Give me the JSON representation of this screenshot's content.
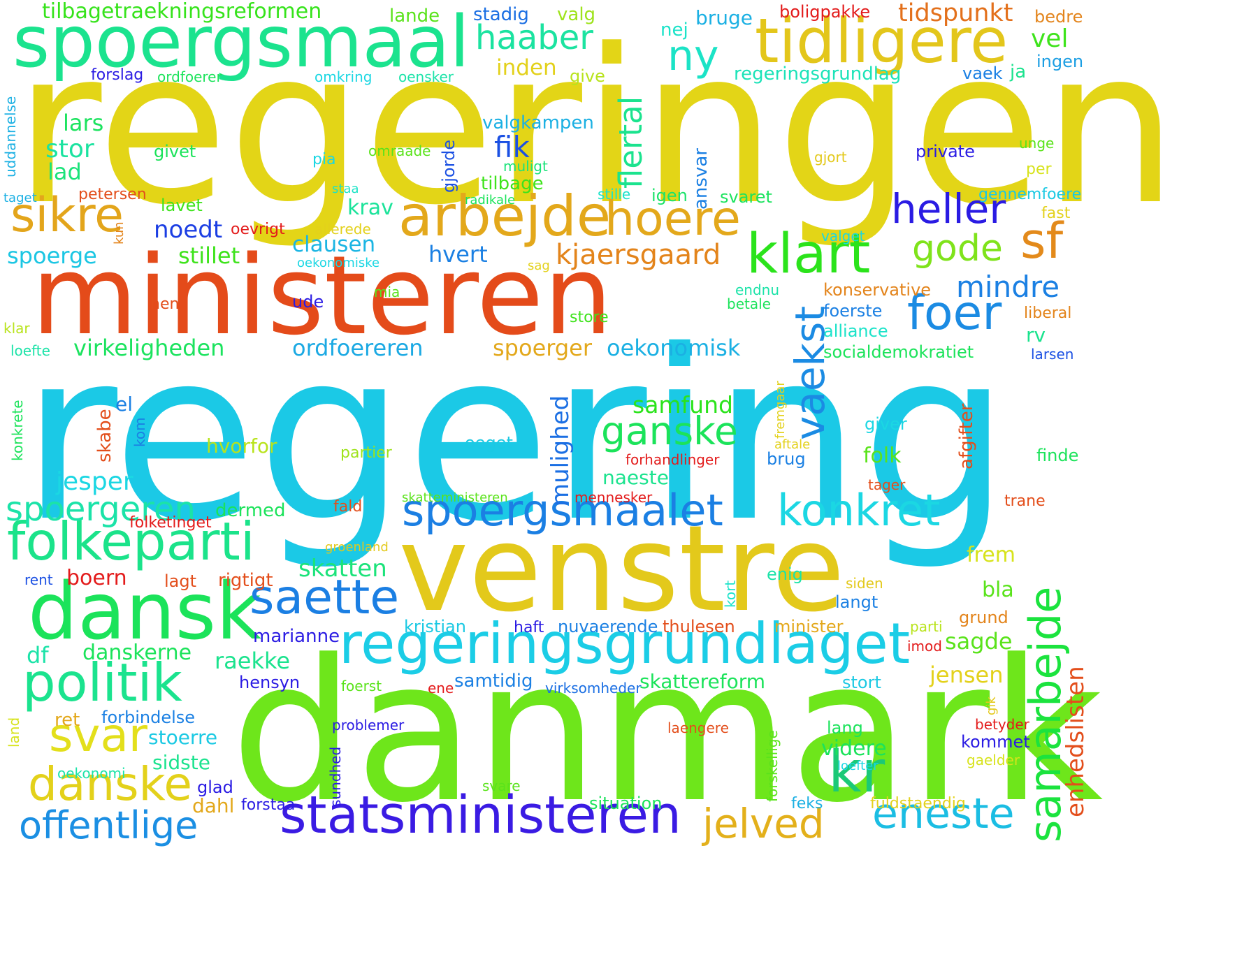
{
  "cloud": {
    "words": [
      {
        "text": "regeringen",
        "color": "#e3d517",
        "rotated": false
      },
      {
        "text": "regering",
        "color": "#1bc9e6",
        "rotated": false
      },
      {
        "text": "ministeren",
        "color": "#e44b1a",
        "rotated": false
      },
      {
        "text": "danmark",
        "color": "#6ee61b",
        "rotated": false
      },
      {
        "text": "venstre",
        "color": "#e3c91b",
        "rotated": false
      },
      {
        "text": "spoergsmaal",
        "color": "#1be38e",
        "rotated": false
      },
      {
        "text": "dansk",
        "color": "#1be35a",
        "rotated": false
      },
      {
        "text": "tidligere",
        "color": "#e3c61b",
        "rotated": false
      },
      {
        "text": "regeringsgrundlaget",
        "color": "#1bcde6",
        "rotated": false
      },
      {
        "text": "statsministeren",
        "color": "#3a1be3",
        "rotated": false
      },
      {
        "text": "arbejde",
        "color": "#e3a81b",
        "rotated": false
      },
      {
        "text": "folkeparti",
        "color": "#1be38a",
        "rotated": false
      },
      {
        "text": "spoergsmaalet",
        "color": "#1b7fe3",
        "rotated": false
      },
      {
        "text": "politik",
        "color": "#1be38e",
        "rotated": false
      },
      {
        "text": "klart",
        "color": "#2be31b",
        "rotated": false
      },
      {
        "text": "hoere",
        "color": "#e3a81b",
        "rotated": false
      },
      {
        "text": "konkret",
        "color": "#1bd7e3",
        "rotated": false
      },
      {
        "text": "saette",
        "color": "#1b7fe3",
        "rotated": false
      },
      {
        "text": "danske",
        "color": "#e3d11b",
        "rotated": false
      },
      {
        "text": "offentlige",
        "color": "#1b8fe3",
        "rotated": false
      },
      {
        "text": "eneste",
        "color": "#1bbde3",
        "rotated": false
      },
      {
        "text": "sikre",
        "color": "#e3a51b",
        "rotated": false
      },
      {
        "text": "ganske",
        "color": "#1be35a",
        "rotated": false
      },
      {
        "text": "samarbejde",
        "color": "#1be33e",
        "rotated": true
      },
      {
        "text": "vaekst",
        "color": "#1b8be3",
        "rotated": true
      },
      {
        "text": "foer",
        "color": "#1b8be3",
        "rotated": false
      },
      {
        "text": "heller",
        "color": "#2a1be3",
        "rotated": false
      },
      {
        "text": "jelved",
        "color": "#e3b01b",
        "rotated": false
      },
      {
        "text": "svar",
        "color": "#e3df1b",
        "rotated": false
      },
      {
        "text": "kr",
        "color": "#1bc977",
        "rotated": false
      },
      {
        "text": "sf",
        "color": "#e38a1b",
        "rotated": false
      },
      {
        "text": "ny",
        "color": "#1be3c6",
        "rotated": false
      },
      {
        "text": "haaber",
        "color": "#1be3a0",
        "rotated": false
      },
      {
        "text": "gode",
        "color": "#7fe31b",
        "rotated": false
      },
      {
        "text": "flertal",
        "color": "#1be38e",
        "rotated": true
      },
      {
        "text": "mindre",
        "color": "#1b80e3",
        "rotated": false
      },
      {
        "text": "mulighed",
        "color": "#1b6fe3",
        "rotated": true
      },
      {
        "text": "enhedslisten",
        "color": "#e34e1b",
        "rotated": true
      },
      {
        "text": "spoergeren",
        "color": "#1be3a8",
        "rotated": false
      },
      {
        "text": "kjaersgaard",
        "color": "#e3841b",
        "rotated": false
      },
      {
        "text": "tilbagetraekningsreformen",
        "color": "#36e31b",
        "rotated": false
      },
      {
        "text": "tidspunkt",
        "color": "#e3701b",
        "rotated": false
      },
      {
        "text": "virkeligheden",
        "color": "#1be35e",
        "rotated": false
      },
      {
        "text": "ordfoereren",
        "color": "#1ba9e3",
        "rotated": false
      },
      {
        "text": "oekonomisk",
        "color": "#1bb0e3",
        "rotated": false
      },
      {
        "text": "jesper",
        "color": "#1bd7e3",
        "rotated": false
      },
      {
        "text": "skatten",
        "color": "#1be37a",
        "rotated": false
      },
      {
        "text": "samfund",
        "color": "#2be31b",
        "rotated": false
      },
      {
        "text": "noedt",
        "color": "#1b3ee3",
        "rotated": false
      },
      {
        "text": "clausen",
        "color": "#1bb5e3",
        "rotated": false
      },
      {
        "text": "spoerge",
        "color": "#1bc6e3",
        "rotated": false
      },
      {
        "text": "stillet",
        "color": "#3ee31b",
        "rotated": false
      },
      {
        "text": "krav",
        "color": "#1be39a",
        "rotated": false
      },
      {
        "text": "hvert",
        "color": "#1b80e3",
        "rotated": false
      },
      {
        "text": "spoerger",
        "color": "#e3a81b",
        "rotated": false
      },
      {
        "text": "stor",
        "color": "#1be3a0",
        "rotated": false
      },
      {
        "text": "lad",
        "color": "#1be37a",
        "rotated": false
      },
      {
        "text": "lars",
        "color": "#1be35e",
        "rotated": false
      },
      {
        "text": "fik",
        "color": "#1b50e3",
        "rotated": false
      },
      {
        "text": "inden",
        "color": "#e3d11b",
        "rotated": false
      },
      {
        "text": "vel",
        "color": "#3ee31b",
        "rotated": false
      },
      {
        "text": "nej",
        "color": "#1be3c9",
        "rotated": false
      },
      {
        "text": "bruge",
        "color": "#1bb0e3",
        "rotated": false
      },
      {
        "text": "lande",
        "color": "#5ae31b",
        "rotated": false
      },
      {
        "text": "stadig",
        "color": "#1b6fe3",
        "rotated": false
      },
      {
        "text": "valg",
        "color": "#9ee31b",
        "rotated": false
      },
      {
        "text": "boligpakke",
        "color": "#e31b1b",
        "rotated": false
      },
      {
        "text": "bedre",
        "color": "#e3841b",
        "rotated": false
      },
      {
        "text": "ingen",
        "color": "#1b9ee3",
        "rotated": false
      },
      {
        "text": "ja",
        "color": "#1be38e",
        "rotated": false
      },
      {
        "text": "vaek",
        "color": "#1b80e3",
        "rotated": false
      },
      {
        "text": "regeringsgrundlag",
        "color": "#1be3b8",
        "rotated": false
      },
      {
        "text": "forslag",
        "color": "#2a1be3",
        "rotated": false
      },
      {
        "text": "ordfoerer",
        "color": "#1be35a",
        "rotated": false
      },
      {
        "text": "omkring",
        "color": "#1bd7e3",
        "rotated": false
      },
      {
        "text": "oensker",
        "color": "#1be3a8",
        "rotated": false
      },
      {
        "text": "give",
        "color": "#b8e31b",
        "rotated": false
      },
      {
        "text": "valgkampen",
        "color": "#1bb0e3",
        "rotated": false
      },
      {
        "text": "givet",
        "color": "#1be35a",
        "rotated": false
      },
      {
        "text": "omraade",
        "color": "#5ae31b",
        "rotated": false
      },
      {
        "text": "muligt",
        "color": "#1be37a",
        "rotated": false
      },
      {
        "text": "tilbage",
        "color": "#3ee31b",
        "rotated": false
      },
      {
        "text": "gjorde",
        "color": "#1b50e3",
        "rotated": true
      },
      {
        "text": "pia",
        "color": "#1bd7e3",
        "rotated": false
      },
      {
        "text": "staa",
        "color": "#1be3c6",
        "rotated": false
      },
      {
        "text": "radikale",
        "color": "#1be35a",
        "rotated": false
      },
      {
        "text": "ansvar",
        "color": "#1b80e3",
        "rotated": true
      },
      {
        "text": "igen",
        "color": "#1be36a",
        "rotated": false
      },
      {
        "text": "svaret",
        "color": "#1be35e",
        "rotated": false
      },
      {
        "text": "stille",
        "color": "#1be3c9",
        "rotated": false
      },
      {
        "text": "private",
        "color": "#2a1be3",
        "rotated": false
      },
      {
        "text": "unge",
        "color": "#5ae31b",
        "rotated": false
      },
      {
        "text": "gjort",
        "color": "#e3c91b",
        "rotated": false
      },
      {
        "text": "per",
        "color": "#d7e31b",
        "rotated": false
      },
      {
        "text": "gennemfoere",
        "color": "#1bc9e3",
        "rotated": false
      },
      {
        "text": "fast",
        "color": "#e3d11b",
        "rotated": false
      },
      {
        "text": "uddannelse",
        "color": "#1bb0e3",
        "rotated": true
      },
      {
        "text": "taget",
        "color": "#1bb0e3",
        "rotated": false
      },
      {
        "text": "petersen",
        "color": "#e34e1b",
        "rotated": false
      },
      {
        "text": "lavet",
        "color": "#3ee31b",
        "rotated": false
      },
      {
        "text": "allerede",
        "color": "#e3d11b",
        "rotated": false
      },
      {
        "text": "oevrigt",
        "color": "#e31b1b",
        "rotated": false
      },
      {
        "text": "kun",
        "color": "#e3841b",
        "rotated": true
      },
      {
        "text": "oekonomiske",
        "color": "#1bd7e3",
        "rotated": false
      },
      {
        "text": "sag",
        "color": "#e3d11b",
        "rotated": false
      },
      {
        "text": "valget",
        "color": "#1bd7e3",
        "rotated": false
      },
      {
        "text": "mia",
        "color": "#5ae31b",
        "rotated": false
      },
      {
        "text": "ude",
        "color": "#2a1be3",
        "rotated": false
      },
      {
        "text": "hen",
        "color": "#e34e1b",
        "rotated": false
      },
      {
        "text": "endnu",
        "color": "#1be3a8",
        "rotated": false
      },
      {
        "text": "betale",
        "color": "#1be35a",
        "rotated": false
      },
      {
        "text": "konservative",
        "color": "#e3841b",
        "rotated": false
      },
      {
        "text": "foerste",
        "color": "#1b80e3",
        "rotated": false
      },
      {
        "text": "alliance",
        "color": "#1be3c9",
        "rotated": false
      },
      {
        "text": "liberal",
        "color": "#e3841b",
        "rotated": false
      },
      {
        "text": "rv",
        "color": "#1be38e",
        "rotated": false
      },
      {
        "text": "socialdemokratiet",
        "color": "#1be35a",
        "rotated": false
      },
      {
        "text": "larsen",
        "color": "#1b50e3",
        "rotated": false
      },
      {
        "text": "store",
        "color": "#3ee31b",
        "rotated": false
      },
      {
        "text": "klar",
        "color": "#b8e31b",
        "rotated": false
      },
      {
        "text": "loefte",
        "color": "#1be3a8",
        "rotated": false
      },
      {
        "text": "konkrete",
        "color": "#1be35a",
        "rotated": true
      },
      {
        "text": "skabe",
        "color": "#e34e1b",
        "rotated": true
      },
      {
        "text": "el",
        "color": "#1b80e3",
        "rotated": false
      },
      {
        "text": "kom",
        "color": "#1b80e3",
        "rotated": true
      },
      {
        "text": "hvorfor",
        "color": "#b8e31b",
        "rotated": false
      },
      {
        "text": "partier",
        "color": "#9ee31b",
        "rotated": false
      },
      {
        "text": "oeget",
        "color": "#1bc9e3",
        "rotated": false
      },
      {
        "text": "forhandlinger",
        "color": "#e31b1b",
        "rotated": false
      },
      {
        "text": "brug",
        "color": "#1b80e3",
        "rotated": false
      },
      {
        "text": "folk",
        "color": "#5ae31b",
        "rotated": false
      },
      {
        "text": "fremgaar",
        "color": "#e3d11b",
        "rotated": true
      },
      {
        "text": "aftale",
        "color": "#e3d11b",
        "rotated": false
      },
      {
        "text": "afgifter",
        "color": "#e34e1b",
        "rotated": true
      },
      {
        "text": "giver",
        "color": "#1bd7e3",
        "rotated": false
      },
      {
        "text": "finde",
        "color": "#1be35a",
        "rotated": false
      },
      {
        "text": "naeste",
        "color": "#1be38e",
        "rotated": false
      },
      {
        "text": "tager",
        "color": "#e34e1b",
        "rotated": false
      },
      {
        "text": "trane",
        "color": "#e34e1b",
        "rotated": false
      },
      {
        "text": "dermed",
        "color": "#1be35a",
        "rotated": false
      },
      {
        "text": "folketinget",
        "color": "#e31b1b",
        "rotated": false
      },
      {
        "text": "fald",
        "color": "#e34e1b",
        "rotated": false
      },
      {
        "text": "skatteministeren",
        "color": "#5ae31b",
        "rotated": false
      },
      {
        "text": "mennesker",
        "color": "#e31b1b",
        "rotated": false
      },
      {
        "text": "groenland",
        "color": "#e3c91b",
        "rotated": false
      },
      {
        "text": "rent",
        "color": "#1b50e3",
        "rotated": false
      },
      {
        "text": "boern",
        "color": "#e31b1b",
        "rotated": false
      },
      {
        "text": "lagt",
        "color": "#e34e1b",
        "rotated": false
      },
      {
        "text": "rigtigt",
        "color": "#e34e1b",
        "rotated": false
      },
      {
        "text": "kort",
        "color": "#1be3c9",
        "rotated": true
      },
      {
        "text": "enig",
        "color": "#1be3a8",
        "rotated": false
      },
      {
        "text": "frem",
        "color": "#d7e31b",
        "rotated": false
      },
      {
        "text": "siden",
        "color": "#e3c91b",
        "rotated": false
      },
      {
        "text": "bla",
        "color": "#5ae31b",
        "rotated": false
      },
      {
        "text": "langt",
        "color": "#1b80e3",
        "rotated": false
      },
      {
        "text": "grund",
        "color": "#e3841b",
        "rotated": false
      },
      {
        "text": "kristian",
        "color": "#1bc9e3",
        "rotated": false
      },
      {
        "text": "haft",
        "color": "#2a1be3",
        "rotated": false
      },
      {
        "text": "nuvaerende",
        "color": "#1b80e3",
        "rotated": false
      },
      {
        "text": "thulesen",
        "color": "#e34e1b",
        "rotated": false
      },
      {
        "text": "minister",
        "color": "#e3a81b",
        "rotated": false
      },
      {
        "text": "parti",
        "color": "#b8e31b",
        "rotated": false
      },
      {
        "text": "marianne",
        "color": "#2a1be3",
        "rotated": false
      },
      {
        "text": "sagde",
        "color": "#5ae31b",
        "rotated": false
      },
      {
        "text": "df",
        "color": "#1be3a8",
        "rotated": false
      },
      {
        "text": "danskerne",
        "color": "#1be35a",
        "rotated": false
      },
      {
        "text": "raekke",
        "color": "#1be38e",
        "rotated": false
      },
      {
        "text": "imod",
        "color": "#e31b1b",
        "rotated": false
      },
      {
        "text": "jensen",
        "color": "#e3d11b",
        "rotated": false
      },
      {
        "text": "hensyn",
        "color": "#2a1be3",
        "rotated": false
      },
      {
        "text": "samtidig",
        "color": "#1b80e3",
        "rotated": false
      },
      {
        "text": "skattereform",
        "color": "#1be35a",
        "rotated": false
      },
      {
        "text": "ene",
        "color": "#e31b1b",
        "rotated": false
      },
      {
        "text": "foerst",
        "color": "#5ae31b",
        "rotated": false
      },
      {
        "text": "virksomheder",
        "color": "#1b6fe3",
        "rotated": false
      },
      {
        "text": "stort",
        "color": "#1bc9e3",
        "rotated": false
      },
      {
        "text": "gik",
        "color": "#e3c91b",
        "rotated": true
      },
      {
        "text": "ret",
        "color": "#e3a81b",
        "rotated": false
      },
      {
        "text": "forbindelse",
        "color": "#1b80e3",
        "rotated": false
      },
      {
        "text": "land",
        "color": "#d7e31b",
        "rotated": true
      },
      {
        "text": "problemer",
        "color": "#2a1be3",
        "rotated": false
      },
      {
        "text": "forskellige",
        "color": "#5ae31b",
        "rotated": true
      },
      {
        "text": "laengere",
        "color": "#e34e1b",
        "rotated": false
      },
      {
        "text": "lang",
        "color": "#1be35a",
        "rotated": false
      },
      {
        "text": "betyder",
        "color": "#e31b1b",
        "rotated": false
      },
      {
        "text": "stoerre",
        "color": "#1bc9e3",
        "rotated": false
      },
      {
        "text": "videre",
        "color": "#1be35a",
        "rotated": false
      },
      {
        "text": "kommet",
        "color": "#2a1be3",
        "rotated": false
      },
      {
        "text": "sidste",
        "color": "#1be38e",
        "rotated": false
      },
      {
        "text": "oekonomi",
        "color": "#1be3a8",
        "rotated": false
      },
      {
        "text": "glad",
        "color": "#2a1be3",
        "rotated": false
      },
      {
        "text": "sundhed",
        "color": "#2a1be3",
        "rotated": true
      },
      {
        "text": "loefter",
        "color": "#1bd7e3",
        "rotated": false
      },
      {
        "text": "gaelder",
        "color": "#d7e31b",
        "rotated": false
      },
      {
        "text": "svare",
        "color": "#5ae31b",
        "rotated": false
      },
      {
        "text": "dahl",
        "color": "#e3a81b",
        "rotated": false
      },
      {
        "text": "forstaa",
        "color": "#2a1be3",
        "rotated": false
      },
      {
        "text": "situation",
        "color": "#1be35a",
        "rotated": false
      },
      {
        "text": "feks",
        "color": "#1bb0e3",
        "rotated": false
      },
      {
        "text": "fuldstaendig",
        "color": "#e3d11b",
        "rotated": false
      }
    ]
  }
}
